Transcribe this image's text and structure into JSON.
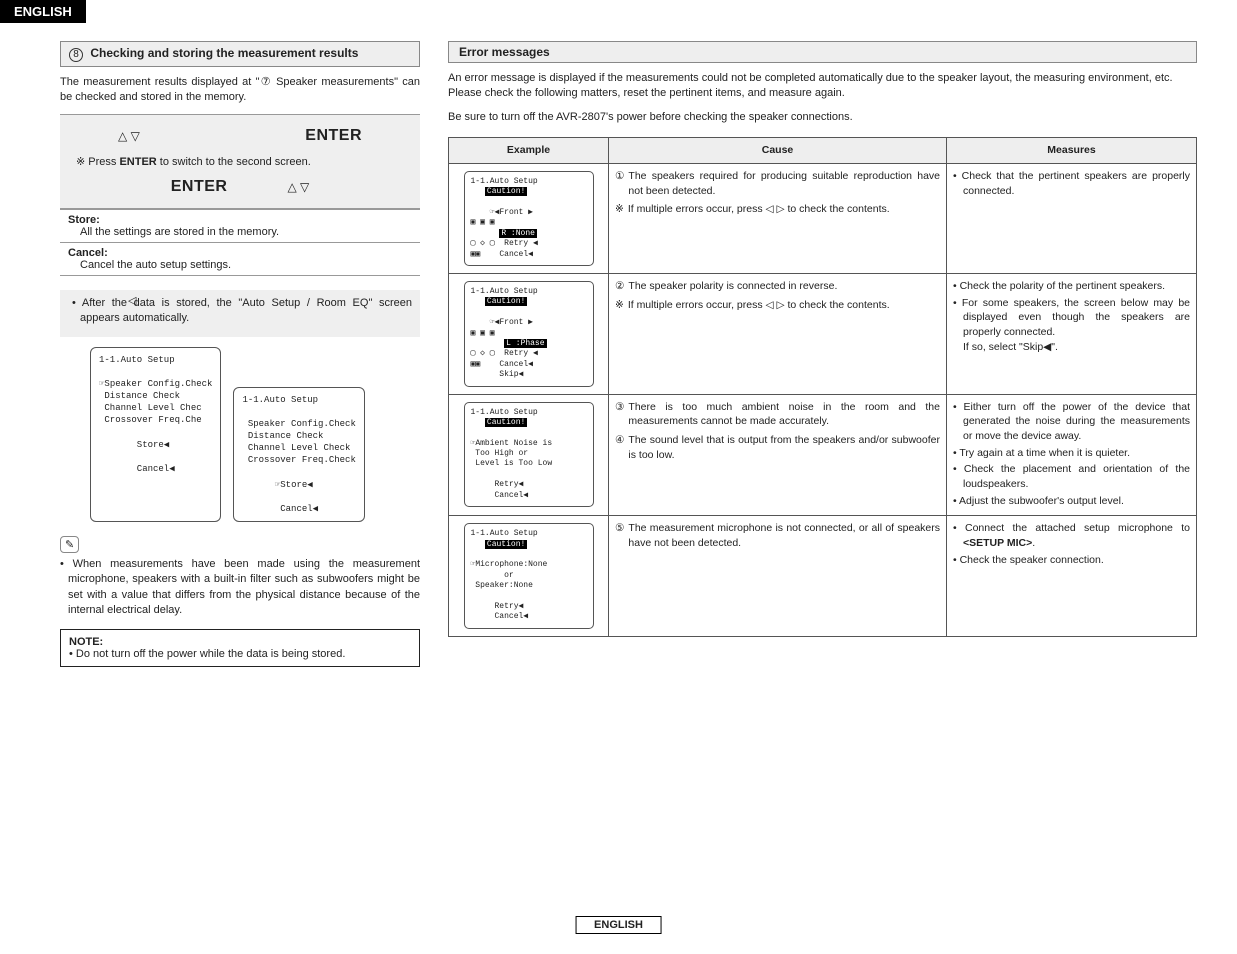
{
  "header": {
    "language": "ENGLISH"
  },
  "left": {
    "section_num": "8",
    "section_title": "Checking and storing the measurement results",
    "intro": "The measurement results displayed at \"⑦ Speaker measurements\" can be checked and stored in the memory.",
    "enter_label": "ENTER",
    "switch_note_prefix": "※ Press ",
    "switch_note_bold": "ENTER",
    "switch_note_suffix": " to switch to the second screen.",
    "store_title": "Store:",
    "store_body": "All the settings are stored in the memory.",
    "cancel_title": "Cancel:",
    "cancel_body": "Cancel the auto setup settings.",
    "after_store": "After the data is stored, the \"Auto Setup / Room EQ\" screen appears automatically.",
    "lcd1": "1-1.Auto Setup\n\n☞Speaker Config.Check\n Distance Check\n Channel Level Chec\n Crossover Freq.Che\n\n       Store◀\n\n       Cancel◀",
    "lcd2": "1-1.Auto Setup\n\n Speaker Config.Check\n Distance Check\n Channel Level Check\n Crossover Freq.Check\n\n      ☞Store◀\n\n       Cancel◀",
    "pencil_note": "When measurements have been made using the measurement microphone, speakers with a built-in filter such as subwoofers might be set with a value that differs from the physical distance because of the internal electrical delay.",
    "note_label": "NOTE:",
    "note_body": "Do not turn off the power while the data is being stored."
  },
  "right": {
    "err_title": "Error messages",
    "err_intro1": "An error message is displayed if the measurements could not be completed automatically due to the speaker layout, the measuring environment, etc. Please check the following matters, reset the pertinent items, and measure again.",
    "err_intro2": "Be sure to turn off the AVR-2807's power before checking the speaker connections.",
    "th_example": "Example",
    "th_cause": "Cause",
    "th_measures": "Measures",
    "rows": [
      {
        "lcd": "1-1.Auto Setup\n   Caution!\n\n    ☞◀Front ▶\n▣ ▣ ▣\n      R :None \n▢ ◇ ▢  Retry ◀\n▣▣    Cancel◀",
        "lcd_inv": [
          "Caution!",
          "R :None"
        ],
        "causes": [
          {
            "n": "①",
            "t": "The speakers required for producing suitable reproduction have not been detected."
          },
          {
            "n": "※",
            "t": "If multiple errors occur, press ◁ ▷ to check the contents."
          }
        ],
        "measures": [
          "Check that the pertinent speakers are properly connected."
        ]
      },
      {
        "lcd": "1-1.Auto Setup\n   Caution!\n\n    ☞◀Front ▶\n▣ ▣ ▣\n       L :Phase \n▢ ◇ ▢  Retry ◀\n▣▣    Cancel◀\n      Skip◀",
        "lcd_inv": [
          "Caution!",
          "L :Phase"
        ],
        "causes": [
          {
            "n": "②",
            "t": "The speaker polarity is connected in reverse."
          },
          {
            "n": "※",
            "t": "If multiple errors occur, press ◁ ▷ to check the contents."
          }
        ],
        "measures": [
          "Check the polarity of the pertinent speakers.",
          "For some speakers, the screen below may be displayed even though the speakers are properly connected.\nIf so, select \"Skip◀\"."
        ]
      },
      {
        "lcd": "1-1.Auto Setup\n   Caution!\n\n☞Ambient Noise is\n Too High or\n Level is Too Low\n\n     Retry◀\n     Cancel◀",
        "lcd_inv": [
          "Caution!"
        ],
        "causes": [
          {
            "n": "③",
            "t": "There is too much ambient noise in the room and the measurements cannot be made accurately."
          },
          {
            "n": "④",
            "t": "The sound level that is output from the speakers and/or subwoofer is too low."
          }
        ],
        "measures": [
          "Either turn off the power of the device that generated the noise during the measurements or move the device away.",
          "Try again at a time when it is quieter.",
          "Check the placement and orientation of the loudspeakers.",
          "Adjust the subwoofer's output level."
        ]
      },
      {
        "lcd": "1-1.Auto Setup\n   Caution!\n\n☞Microphone:None\n       or\n Speaker:None\n\n     Retry◀\n     Cancel◀",
        "lcd_inv": [
          "Caution!"
        ],
        "causes": [
          {
            "n": "⑤",
            "t": "The measurement microphone is not connected, or all of speakers have not been detected."
          }
        ],
        "measures": [
          "Connect the attached setup microphone to <SETUP MIC>.",
          "Check the speaker connection."
        ]
      }
    ]
  },
  "footer": {
    "language": "ENGLISH"
  }
}
